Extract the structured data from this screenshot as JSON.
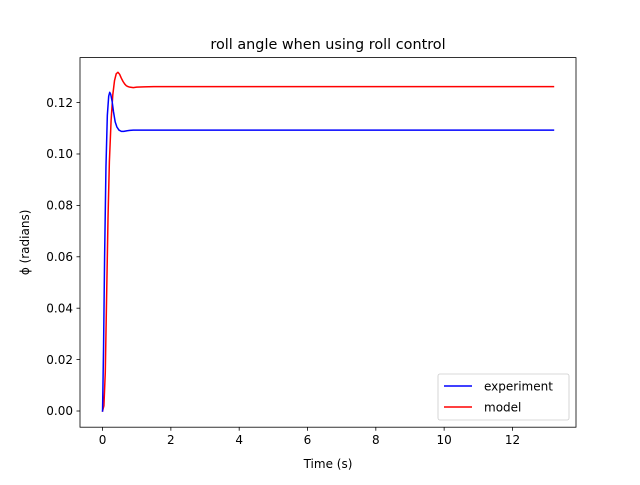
{
  "chart_data": {
    "type": "line",
    "title": "roll angle when using roll control",
    "xlabel": "Time (s)",
    "ylabel": "ϕ (radians)",
    "xlim": [
      -0.66,
      13.86
    ],
    "ylim": [
      -0.0063,
      0.1375
    ],
    "xticks": [
      0,
      2,
      4,
      6,
      8,
      10,
      12
    ],
    "xtick_labels": [
      "0",
      "2",
      "4",
      "6",
      "8",
      "10",
      "12"
    ],
    "yticks": [
      0.0,
      0.02,
      0.04,
      0.06,
      0.08,
      0.1,
      0.12
    ],
    "ytick_labels": [
      "0.00",
      "0.02",
      "0.04",
      "0.06",
      "0.08",
      "0.10",
      "0.12"
    ],
    "grid": false,
    "legend_position": "lower right",
    "series": [
      {
        "name": "experiment",
        "color": "#0000ff",
        "x": [
          0,
          0.03,
          0.06,
          0.1,
          0.14,
          0.18,
          0.21,
          0.24,
          0.28,
          0.32,
          0.37,
          0.42,
          0.48,
          0.55,
          0.62,
          0.7,
          0.8,
          0.9,
          1.0,
          1.2,
          1.5,
          2.0,
          3.0,
          5.0,
          8.0,
          11.0,
          13.2
        ],
        "y": [
          0,
          0.025,
          0.06,
          0.095,
          0.115,
          0.1225,
          0.124,
          0.1232,
          0.1205,
          0.1165,
          0.1125,
          0.1105,
          0.1093,
          0.1088,
          0.1088,
          0.109,
          0.1092,
          0.1093,
          0.1093,
          0.1093,
          0.1093,
          0.1093,
          0.1093,
          0.1093,
          0.1093,
          0.1093,
          0.1093
        ]
      },
      {
        "name": "model",
        "color": "#ff0000",
        "x": [
          0,
          0.04,
          0.08,
          0.12,
          0.16,
          0.2,
          0.25,
          0.3,
          0.35,
          0.4,
          0.45,
          0.5,
          0.55,
          0.6,
          0.65,
          0.7,
          0.75,
          0.8,
          0.9,
          1.0,
          1.2,
          1.5,
          2.0,
          3.0,
          5.0,
          8.0,
          11.0,
          13.2
        ],
        "y": [
          0,
          0.002,
          0.015,
          0.045,
          0.075,
          0.097,
          0.113,
          0.123,
          0.1285,
          0.1312,
          0.1318,
          0.131,
          0.1295,
          0.1282,
          0.1272,
          0.1265,
          0.1262,
          0.126,
          0.1258,
          0.126,
          0.1261,
          0.1262,
          0.1262,
          0.1262,
          0.1262,
          0.1262,
          0.1262,
          0.1262
        ]
      }
    ]
  }
}
